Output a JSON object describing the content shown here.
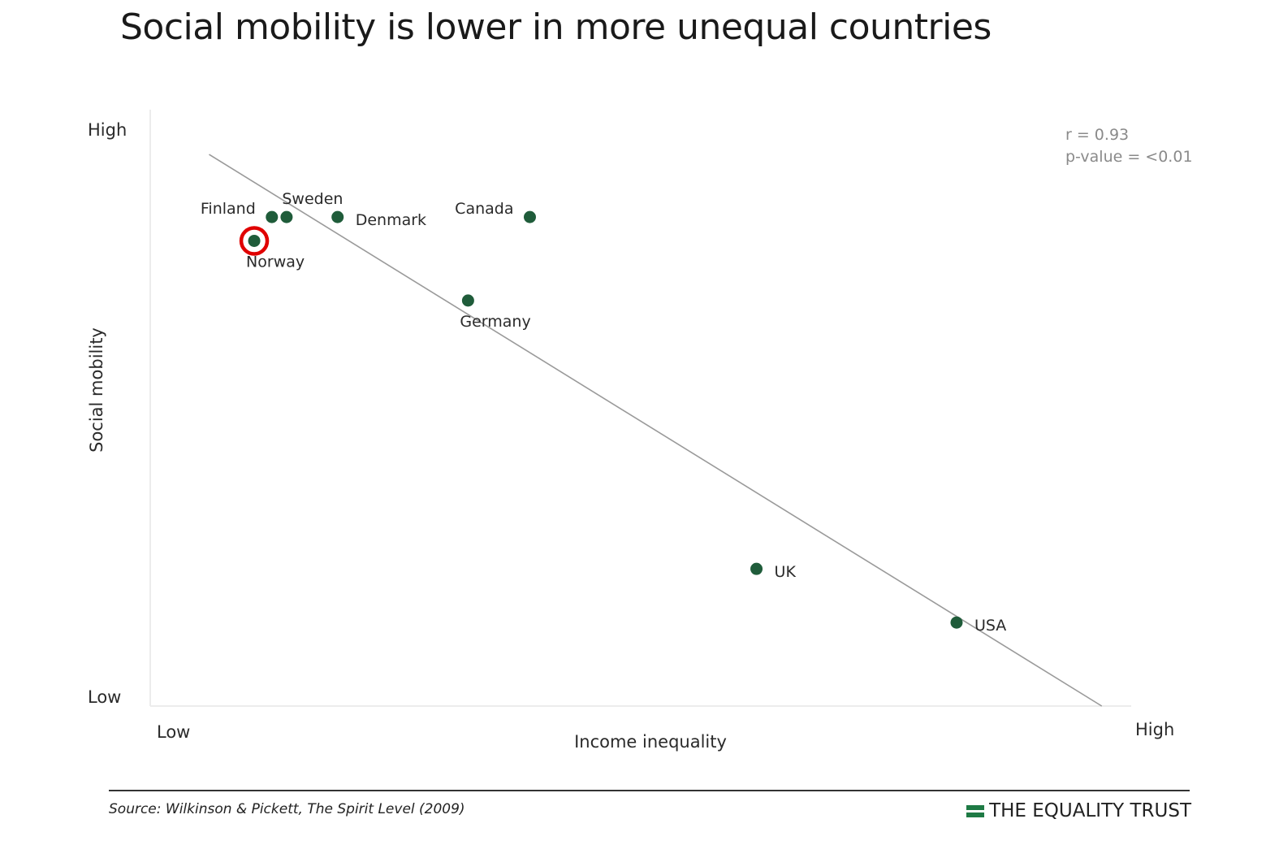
{
  "chart_data": {
    "type": "scatter",
    "title": "Social mobility is lower in more unequal countries",
    "xlabel": "Income inequality",
    "ylabel": "Social mobility",
    "x_tick_labels": {
      "low": "Low",
      "high": "High"
    },
    "y_tick_labels": {
      "low": "Low",
      "high": "High"
    },
    "xlim": [
      0,
      100
    ],
    "ylim": [
      0,
      100
    ],
    "grid": false,
    "legend": "none",
    "point_color": "#1f5c3a",
    "highlight_color": "#e00000",
    "points": [
      {
        "label": "Finland",
        "x": 12.4,
        "y": 82,
        "label_pos": "left-above"
      },
      {
        "label": "Sweden",
        "x": 13.9,
        "y": 82,
        "label_pos": "above"
      },
      {
        "label": "Denmark",
        "x": 19.1,
        "y": 82,
        "label_pos": "right"
      },
      {
        "label": "Canada",
        "x": 38.7,
        "y": 82,
        "label_pos": "left-above"
      },
      {
        "label": "Norway",
        "x": 10.6,
        "y": 78,
        "label_pos": "below",
        "highlighted": true
      },
      {
        "label": "Germany",
        "x": 32.4,
        "y": 68,
        "label_pos": "below"
      },
      {
        "label": "UK",
        "x": 61.8,
        "y": 23,
        "label_pos": "right"
      },
      {
        "label": "USA",
        "x": 82.2,
        "y": 14,
        "label_pos": "right"
      }
    ],
    "trendline": {
      "x": [
        6,
        97
      ],
      "y": [
        92.5,
        0
      ]
    },
    "annotations": [
      "r = 0.93",
      "p-value = <0.01"
    ]
  },
  "footer": {
    "source": "Source: Wilkinson & Pickett, The Spirit Level (2009)",
    "brand": "THE EQUALITY TRUST"
  }
}
